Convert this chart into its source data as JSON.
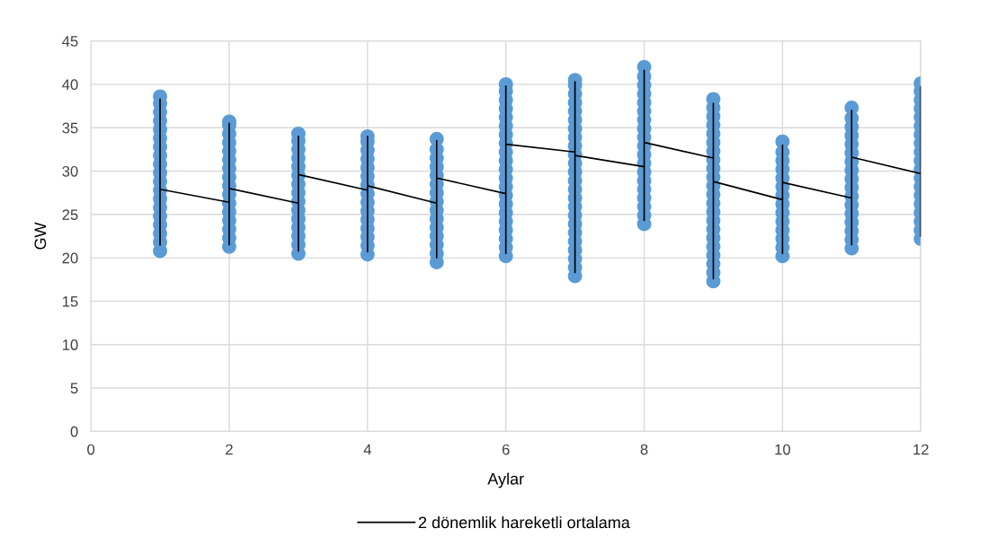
{
  "chart_data": {
    "type": "scatter",
    "xlabel": "Aylar",
    "ylabel": "GW",
    "xlim": [
      0,
      12
    ],
    "xticks": [
      0,
      2,
      4,
      6,
      8,
      10,
      12
    ],
    "ylim": [
      0,
      45
    ],
    "yticks": [
      0,
      5,
      10,
      15,
      20,
      25,
      30,
      35,
      40,
      45
    ],
    "grid": true,
    "legend": "bottom",
    "series": [
      {
        "color": "#5b9bd5",
        "marker": "circle",
        "x": [
          1,
          1,
          1,
          1,
          1,
          1,
          1,
          1,
          1,
          1,
          1,
          1,
          1,
          1,
          1,
          1,
          1,
          1,
          1,
          2,
          2,
          2,
          2,
          2,
          2,
          2,
          2,
          2,
          2,
          2,
          2,
          2,
          2,
          2,
          2,
          3,
          3,
          3,
          3,
          3,
          3,
          3,
          3,
          3,
          3,
          3,
          3,
          3,
          3,
          3,
          4,
          4,
          4,
          4,
          4,
          4,
          4,
          4,
          4,
          4,
          4,
          4,
          4,
          4,
          4,
          5,
          5,
          5,
          5,
          5,
          5,
          5,
          5,
          5,
          5,
          5,
          5,
          5,
          5,
          5,
          6,
          6,
          6,
          6,
          6,
          6,
          6,
          6,
          6,
          6,
          6,
          6,
          6,
          6,
          6,
          6,
          6,
          6,
          6,
          6,
          6,
          7,
          7,
          7,
          7,
          7,
          7,
          7,
          7,
          7,
          7,
          7,
          7,
          7,
          7,
          7,
          7,
          7,
          7,
          7,
          7,
          7,
          7,
          7,
          7,
          8,
          8,
          8,
          8,
          8,
          8,
          8,
          8,
          8,
          8,
          8,
          8,
          8,
          8,
          8,
          8,
          8,
          8,
          8,
          9,
          9,
          9,
          9,
          9,
          9,
          9,
          9,
          9,
          9,
          9,
          9,
          9,
          9,
          9,
          9,
          9,
          9,
          9,
          9,
          9,
          9,
          10,
          10,
          10,
          10,
          10,
          10,
          10,
          10,
          10,
          10,
          10,
          10,
          10,
          10,
          11,
          11,
          11,
          11,
          11,
          11,
          11,
          11,
          11,
          11,
          11,
          11,
          11,
          11,
          11,
          11,
          11,
          12,
          12,
          12,
          12,
          12,
          12,
          12,
          12,
          12,
          12,
          12,
          12,
          12,
          12,
          12,
          12,
          12,
          12,
          12
        ],
        "values": [
          20.8,
          21.8,
          22.8,
          23.8,
          24.8,
          25.8,
          26.8,
          27.8,
          28.8,
          29.8,
          30.8,
          31.8,
          32.8,
          33.8,
          34.8,
          35.8,
          36.8,
          37.8,
          38.6,
          21.3,
          22.3,
          23.3,
          24.3,
          25.3,
          26.3,
          27.3,
          28.3,
          29.3,
          30.3,
          31.3,
          32.3,
          33.3,
          34.3,
          35.3,
          35.7,
          20.5,
          21.5,
          22.5,
          23.5,
          24.5,
          25.5,
          26.5,
          27.5,
          28.5,
          29.5,
          30.5,
          31.5,
          32.5,
          33.5,
          34.3,
          20.4,
          21.4,
          22.4,
          23.4,
          24.4,
          25.4,
          26.4,
          27.4,
          28.4,
          29.4,
          30.4,
          31.4,
          32.4,
          33.4,
          34.0,
          19.5,
          20.5,
          21.5,
          22.5,
          23.5,
          24.5,
          25.5,
          26.5,
          27.5,
          28.5,
          29.5,
          30.5,
          31.5,
          32.5,
          33.7,
          20.2,
          21.2,
          22.2,
          23.2,
          24.2,
          25.2,
          26.2,
          27.2,
          28.2,
          29.2,
          30.2,
          31.2,
          32.2,
          33.2,
          34.2,
          35.2,
          36.2,
          37.2,
          38.2,
          39.2,
          40.0,
          17.9,
          18.9,
          19.9,
          20.9,
          21.9,
          22.9,
          23.9,
          24.9,
          25.9,
          26.9,
          27.9,
          28.9,
          29.9,
          30.9,
          31.9,
          32.9,
          33.9,
          34.9,
          35.9,
          36.9,
          37.9,
          38.9,
          39.9,
          40.5,
          23.9,
          24.9,
          25.9,
          26.9,
          27.9,
          28.9,
          29.9,
          30.9,
          31.9,
          32.9,
          33.9,
          34.9,
          35.9,
          36.9,
          37.9,
          38.9,
          39.9,
          40.9,
          42.0,
          17.3,
          18.3,
          19.3,
          20.3,
          21.3,
          22.3,
          23.3,
          24.3,
          25.3,
          26.3,
          27.3,
          28.3,
          29.3,
          30.3,
          31.3,
          32.3,
          33.3,
          34.3,
          35.3,
          36.3,
          37.3,
          38.3,
          20.2,
          21.2,
          22.2,
          23.2,
          24.2,
          25.2,
          26.2,
          27.2,
          28.2,
          29.2,
          30.2,
          31.2,
          32.2,
          33.4,
          21.1,
          22.1,
          23.1,
          24.1,
          25.1,
          26.1,
          27.1,
          28.1,
          29.1,
          30.1,
          31.1,
          32.1,
          33.1,
          34.1,
          35.1,
          36.1,
          37.3,
          22.2,
          23.2,
          24.2,
          25.2,
          26.2,
          27.2,
          28.2,
          29.2,
          30.2,
          31.2,
          32.2,
          33.2,
          34.2,
          35.2,
          36.2,
          37.2,
          38.2,
          39.2,
          40.1
        ]
      },
      {
        "type": "line",
        "name": "2 dönemlik hareketli ortalama",
        "color": "#000000",
        "marker": "none",
        "line_style": "solid",
        "x": [
          1,
          1,
          1,
          2,
          2,
          2,
          2,
          3,
          3,
          3,
          3,
          4,
          4,
          4,
          4,
          5,
          5,
          5,
          5,
          6,
          6,
          6,
          6,
          7,
          7,
          7,
          7,
          8,
          8,
          8,
          8,
          9,
          9,
          9,
          9,
          10,
          10,
          10,
          10,
          11,
          11,
          11,
          11,
          12,
          12,
          12
        ],
        "values": [
          21.5,
          38.3,
          27.9,
          26.4,
          21.5,
          35.5,
          28.0,
          26.3,
          20.8,
          34.0,
          29.6,
          27.8,
          20.7,
          34.0,
          28.3,
          26.3,
          20.0,
          33.5,
          29.2,
          27.4,
          20.5,
          39.8,
          33.1,
          32.2,
          18.3,
          40.3,
          31.8,
          30.5,
          24.3,
          41.6,
          33.3,
          31.5,
          17.6,
          37.8,
          28.8,
          26.7,
          20.5,
          33.0,
          28.7,
          26.9,
          21.5,
          37.0,
          31.6,
          29.7,
          22.5,
          39.7
        ]
      }
    ]
  }
}
